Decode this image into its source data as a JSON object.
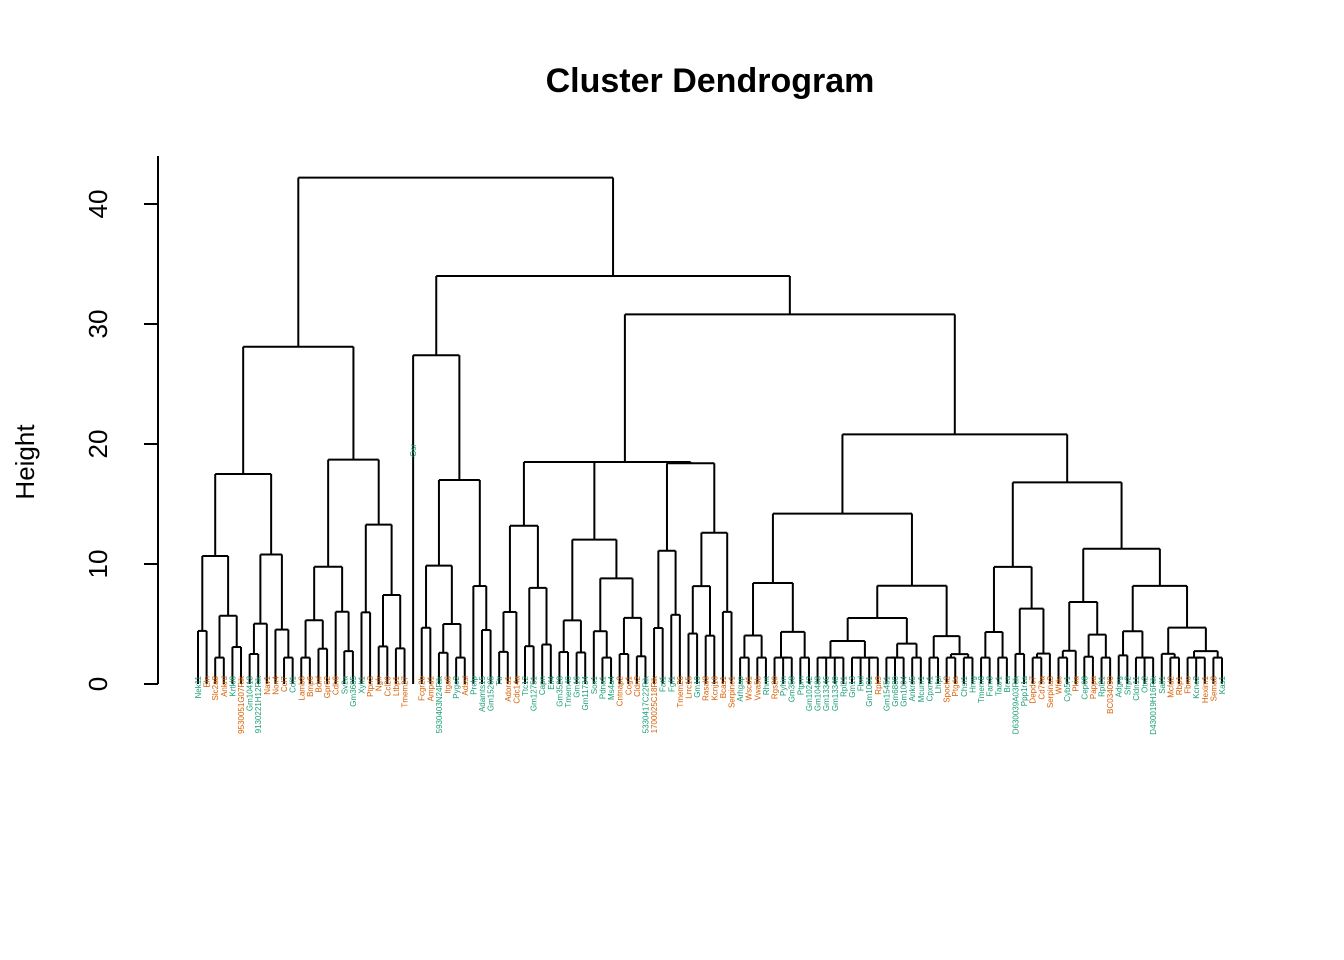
{
  "chart_data": {
    "type": "dendrogram",
    "title": "Cluster Dendrogram",
    "ylabel": "Height",
    "ylim": [
      0,
      44
    ],
    "yticks": [
      0,
      10,
      20,
      30,
      40
    ],
    "colors": {
      "group_a": "#1b9e77",
      "group_b": "#d95f02",
      "branch": "#000000"
    },
    "main_merges": [
      {
        "height": 42.2,
        "joins": "left block + right block"
      },
      {
        "height": 34.0,
        "joins": "Gm12751 group + large right group"
      },
      {
        "height": 30.8,
        "joins": "middle group + right-most group"
      },
      {
        "height": 28.1,
        "joins": "left block"
      },
      {
        "height": 27.4,
        "joins": "Gm12751 + Gm3528 group"
      },
      {
        "height": 26.2,
        "joins": "center group + right group"
      },
      {
        "height": 20.8,
        "joins": "right group"
      },
      {
        "height": 18.7,
        "joins": "Pygo2 / Adamts15 group"
      },
      {
        "height": 18.5,
        "joins": "center-left group"
      },
      {
        "height": 18.4,
        "joins": "Gm10242 group"
      },
      {
        "height": 17.5,
        "joins": "Nek11 group"
      },
      {
        "height": 16.8,
        "joins": "Cep68 group"
      }
    ],
    "labels": [
      {
        "text": "Nek11",
        "g": "a"
      },
      {
        "text": "Eln",
        "g": "b"
      },
      {
        "text": "Slc2a8",
        "g": "b"
      },
      {
        "text": "Ankrd",
        "g": "b"
      },
      {
        "text": "Krtkl6",
        "g": "a"
      },
      {
        "text": "9530051G07Rik",
        "g": "b"
      },
      {
        "text": "Gm10413",
        "g": "a"
      },
      {
        "text": "9130221H12Rik",
        "g": "a"
      },
      {
        "text": "Nav1",
        "g": "b"
      },
      {
        "text": "Nox4",
        "g": "b"
      },
      {
        "text": "Ccl7",
        "g": "b"
      },
      {
        "text": "Cdf1",
        "g": "a"
      },
      {
        "text": "Lamb3",
        "g": "b"
      },
      {
        "text": "Bmp6",
        "g": "b"
      },
      {
        "text": "Bdnf",
        "g": "b"
      },
      {
        "text": "Gpr62",
        "g": "b"
      },
      {
        "text": "Cdh6",
        "g": "b"
      },
      {
        "text": "Sv2a",
        "g": "a"
      },
      {
        "text": "Gm3685",
        "g": "a"
      },
      {
        "text": "Xylt1",
        "g": "a"
      },
      {
        "text": "Ptpn3",
        "g": "b"
      },
      {
        "text": "Ngfr",
        "g": "b"
      },
      {
        "text": "Ccl20",
        "g": "b"
      },
      {
        "text": "Ltbp1",
        "g": "b"
      },
      {
        "text": "Tmem27",
        "g": "b"
      },
      {
        "text": "Gsr",
        "g": "a"
      },
      {
        "text": "Fcgr2b",
        "g": "b"
      },
      {
        "text": "Ampd1",
        "g": "b"
      },
      {
        "text": "5930403N24Rik",
        "g": "a"
      },
      {
        "text": "Itga6",
        "g": "b"
      },
      {
        "text": "Pygo2",
        "g": "a"
      },
      {
        "text": "Adssl",
        "g": "b"
      },
      {
        "text": "Prelp",
        "g": "a"
      },
      {
        "text": "Adamts15",
        "g": "a"
      },
      {
        "text": "Gm15265",
        "g": "a"
      },
      {
        "text": "Ttr",
        "g": "a"
      },
      {
        "text": "Adora1",
        "g": "b"
      },
      {
        "text": "Cdc14a",
        "g": "b"
      },
      {
        "text": "Ttc12",
        "g": "a"
      },
      {
        "text": "Gm12751",
        "g": "a"
      },
      {
        "text": "Capn",
        "g": "a"
      },
      {
        "text": "Eif4",
        "g": "a"
      },
      {
        "text": "Gm3528",
        "g": "a"
      },
      {
        "text": "Tmem40",
        "g": "a"
      },
      {
        "text": "Gm16",
        "g": "a"
      },
      {
        "text": "Gm11734",
        "g": "a"
      },
      {
        "text": "Sox1",
        "g": "a"
      },
      {
        "text": "Pdna1",
        "g": "a"
      },
      {
        "text": "Ms4a4",
        "g": "a"
      },
      {
        "text": "Cntnap2",
        "g": "b"
      },
      {
        "text": "Cog1",
        "g": "b"
      },
      {
        "text": "Cldn2",
        "g": "b"
      },
      {
        "text": "5330417C22Rik",
        "g": "a"
      },
      {
        "text": "1700025C18Rik",
        "g": "b"
      },
      {
        "text": "Fat1",
        "g": "a"
      },
      {
        "text": "Fgf1",
        "g": "a"
      },
      {
        "text": "Tmem26",
        "g": "b"
      },
      {
        "text": "Lrrc15",
        "g": "b"
      },
      {
        "text": "Gm10",
        "g": "a"
      },
      {
        "text": "Rasal3",
        "g": "b"
      },
      {
        "text": "Kcnj16",
        "g": "b"
      },
      {
        "text": "Bcas1",
        "g": "b"
      },
      {
        "text": "Serpine1",
        "g": "b"
      },
      {
        "text": "Arhgap",
        "g": "a"
      },
      {
        "text": "Wscd1",
        "g": "b"
      },
      {
        "text": "Vwa5b",
        "g": "b"
      },
      {
        "text": "Rhmt",
        "g": "a"
      },
      {
        "text": "Rgs20",
        "g": "b"
      },
      {
        "text": "Pyhin",
        "g": "a"
      },
      {
        "text": "Gm358",
        "g": "a"
      },
      {
        "text": "Ptprn",
        "g": "a"
      },
      {
        "text": "Gm10242",
        "g": "a"
      },
      {
        "text": "Gm10483",
        "g": "a"
      },
      {
        "text": "Gm13346",
        "g": "a"
      },
      {
        "text": "Gm13340",
        "g": "a"
      },
      {
        "text": "Rpl21",
        "g": "a"
      },
      {
        "text": "Gm13",
        "g": "a"
      },
      {
        "text": "Fbxl",
        "g": "a"
      },
      {
        "text": "Gm1001",
        "g": "a"
      },
      {
        "text": "Rpk9",
        "g": "b"
      },
      {
        "text": "Gm15451",
        "g": "a"
      },
      {
        "text": "Gm6880",
        "g": "a"
      },
      {
        "text": "Gm1004",
        "g": "a"
      },
      {
        "text": "Ankrd5",
        "g": "a"
      },
      {
        "text": "Mcum1",
        "g": "a"
      },
      {
        "text": "Cpxm1",
        "g": "a"
      },
      {
        "text": "Lhfpl",
        "g": "a"
      },
      {
        "text": "Spock2",
        "g": "b"
      },
      {
        "text": "Ptgds",
        "g": "b"
      },
      {
        "text": "Chst1",
        "g": "a"
      },
      {
        "text": "Hmg",
        "g": "a"
      },
      {
        "text": "Tmem8",
        "g": "a"
      },
      {
        "text": "Fam3",
        "g": "a"
      },
      {
        "text": "Taar1",
        "g": "a"
      },
      {
        "text": "Brca",
        "g": "a"
      },
      {
        "text": "D630039A03Rik",
        "g": "a"
      },
      {
        "text": "Ppp1r1a",
        "g": "a"
      },
      {
        "text": "Depdc7",
        "g": "b"
      },
      {
        "text": "Cd79a",
        "g": "b"
      },
      {
        "text": "Serpina3",
        "g": "b"
      },
      {
        "text": "Wfdc",
        "g": "b"
      },
      {
        "text": "Cyb5r1",
        "g": "a"
      },
      {
        "text": "Pkia",
        "g": "b"
      },
      {
        "text": "Cep68",
        "g": "a"
      },
      {
        "text": "Pappa",
        "g": "b"
      },
      {
        "text": "Rpl21",
        "g": "a"
      },
      {
        "text": "BC034090",
        "g": "b"
      },
      {
        "text": "Adgrg",
        "g": "a"
      },
      {
        "text": "Sfrp2",
        "g": "a"
      },
      {
        "text": "Cldn11",
        "g": "a"
      },
      {
        "text": "Otx2",
        "g": "a"
      },
      {
        "text": "D430019H16Rik",
        "g": "a"
      },
      {
        "text": "Sall1",
        "g": "a"
      },
      {
        "text": "Mcfd2",
        "g": "b"
      },
      {
        "text": "Rbp1",
        "g": "b"
      },
      {
        "text": "Fbxo",
        "g": "b"
      },
      {
        "text": "Kcne2",
        "g": "a"
      },
      {
        "text": "Hexim1",
        "g": "b"
      },
      {
        "text": "Sema3",
        "g": "b"
      },
      {
        "text": "Kas1",
        "g": "a"
      }
    ]
  }
}
